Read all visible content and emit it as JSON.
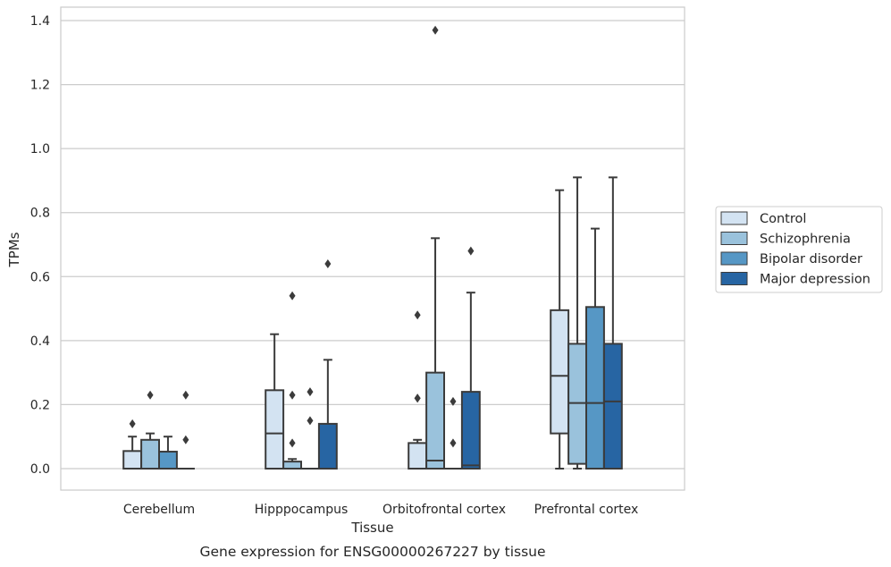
{
  "caption": "Gene expression for ENSG00000267227 by tissue",
  "chart_data": {
    "type": "box",
    "xlabel": "Tissue",
    "ylabel": "TPMs",
    "ylim": [
      -0.065,
      1.44
    ],
    "yticks": [
      "0.0",
      "0.2",
      "0.4",
      "0.6",
      "0.8",
      "1.0",
      "1.2",
      "1.4"
    ],
    "grid": "horizontal",
    "legend_position": "right",
    "categories": [
      "Cerebellum",
      "Hipppocampus",
      "Orbitofrontal cortex",
      "Prefrontal cortex"
    ],
    "series": [
      {
        "name": "Control",
        "color": "#d3e3f2",
        "boxes": [
          {
            "min": 0.0,
            "q1": 0.0,
            "median": 0.0,
            "q3": 0.055,
            "max": 0.1,
            "outliers": [
              0.14
            ]
          },
          {
            "min": 0.0,
            "q1": 0.0,
            "median": 0.11,
            "q3": 0.245,
            "max": 0.42,
            "outliers": []
          },
          {
            "min": 0.0,
            "q1": 0.0,
            "median": 0.0,
            "q3": 0.08,
            "max": 0.09,
            "outliers": [
              0.22,
              0.22,
              0.48
            ]
          },
          {
            "min": 0.0,
            "q1": 0.11,
            "median": 0.29,
            "q3": 0.495,
            "max": 0.87,
            "outliers": []
          }
        ]
      },
      {
        "name": "Schizophrenia",
        "color": "#9ac2dc",
        "boxes": [
          {
            "min": 0.0,
            "q1": 0.0,
            "median": 0.0,
            "q3": 0.09,
            "max": 0.11,
            "outliers": [
              0.23
            ]
          },
          {
            "min": 0.0,
            "q1": 0.0,
            "median": 0.0,
            "q3": 0.022,
            "max": 0.03,
            "outliers": [
              0.08,
              0.23,
              0.54
            ]
          },
          {
            "min": 0.0,
            "q1": 0.0,
            "median": 0.025,
            "q3": 0.3,
            "max": 0.72,
            "outliers": [
              1.37
            ]
          },
          {
            "min": 0.0,
            "q1": 0.015,
            "median": 0.205,
            "q3": 0.39,
            "max": 0.91,
            "outliers": []
          }
        ]
      },
      {
        "name": "Bipolar disorder",
        "color": "#5697c5",
        "boxes": [
          {
            "min": 0.0,
            "q1": 0.0,
            "median": 0.0,
            "q3": 0.053,
            "max": 0.1,
            "outliers": []
          },
          {
            "min": 0.0,
            "q1": 0.0,
            "median": 0.0,
            "q3": 0.0,
            "max": 0.0,
            "outliers": [
              0.15,
              0.24
            ]
          },
          {
            "min": 0.0,
            "q1": 0.0,
            "median": 0.0,
            "q3": 0.0,
            "max": 0.0,
            "outliers": [
              0.08,
              0.21
            ]
          },
          {
            "min": 0.0,
            "q1": 0.0,
            "median": 0.205,
            "q3": 0.505,
            "max": 0.75,
            "outliers": []
          }
        ]
      },
      {
        "name": "Major depression",
        "color": "#2765a3",
        "boxes": [
          {
            "min": 0.0,
            "q1": 0.0,
            "median": 0.0,
            "q3": 0.0,
            "max": 0.0,
            "outliers": [
              0.09,
              0.23
            ]
          },
          {
            "min": 0.0,
            "q1": 0.0,
            "median": 0.0,
            "q3": 0.14,
            "max": 0.34,
            "outliers": [
              0.64
            ]
          },
          {
            "min": 0.0,
            "q1": 0.0,
            "median": 0.01,
            "q3": 0.24,
            "max": 0.55,
            "outliers": [
              0.68
            ]
          },
          {
            "min": 0.0,
            "q1": 0.0,
            "median": 0.21,
            "q3": 0.39,
            "max": 0.91,
            "outliers": []
          }
        ]
      }
    ]
  }
}
